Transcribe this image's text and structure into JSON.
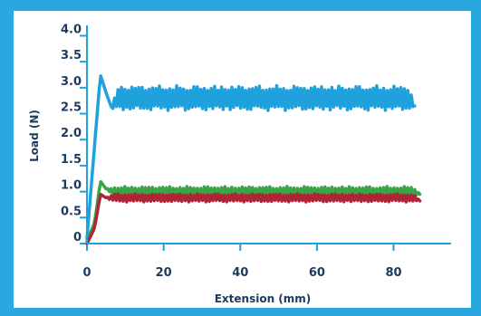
{
  "chart_data": {
    "type": "line",
    "xlabel": "Extension (mm)",
    "ylabel": "Load (N)",
    "xlim": [
      0,
      95
    ],
    "ylim": [
      0,
      4.2
    ],
    "x_ticks": [
      0,
      20,
      40,
      60,
      80
    ],
    "y_ticks": [
      0,
      0.5,
      1.0,
      1.5,
      2.0,
      2.5,
      3.0,
      3.5,
      4.0
    ],
    "y_tick_labels": [
      "0",
      "0.5",
      "1.0",
      "1.5",
      "2.0",
      "2.5",
      "3.0",
      "3.5",
      "4.0"
    ],
    "grid": false,
    "legend": "none",
    "series": [
      {
        "color": "#1ea1dc",
        "x": [
          0,
          3.5,
          5,
          6.5,
          8,
          10,
          15,
          20,
          25,
          30,
          35,
          40,
          45,
          50,
          55,
          60,
          65,
          70,
          75,
          80,
          84,
          85.5
        ],
        "y": [
          0.1,
          3.25,
          2.9,
          2.6,
          2.8,
          2.8,
          2.8,
          2.8,
          2.8,
          2.8,
          2.8,
          2.8,
          2.8,
          2.8,
          2.8,
          2.8,
          2.8,
          2.8,
          2.8,
          2.8,
          2.8,
          2.65
        ],
        "oscillation": [
          0,
          0,
          0,
          0,
          0.24,
          0.24,
          0.24,
          0.24,
          0.24,
          0.24,
          0.24,
          0.24,
          0.24,
          0.24,
          0.24,
          0.24,
          0.24,
          0.24,
          0.24,
          0.24,
          0.24,
          0
        ]
      },
      {
        "color": "#3aa547",
        "x": [
          0,
          2,
          3.5,
          5,
          7,
          10,
          20,
          30,
          40,
          50,
          60,
          70,
          80,
          85,
          87
        ],
        "y": [
          0.05,
          0.4,
          1.2,
          1.05,
          1.0,
          1.0,
          1.0,
          1.0,
          1.0,
          1.0,
          1.0,
          1.0,
          1.0,
          1.0,
          0.95
        ],
        "oscillation": [
          0,
          0,
          0,
          0,
          0.1,
          0.1,
          0.1,
          0.1,
          0.1,
          0.1,
          0.1,
          0.1,
          0.1,
          0.1,
          0
        ]
      },
      {
        "color": "#b02438",
        "x": [
          0,
          2,
          3.5,
          5,
          7,
          10,
          20,
          30,
          40,
          50,
          60,
          70,
          80,
          85,
          87
        ],
        "y": [
          0.0,
          0.3,
          0.95,
          0.88,
          0.88,
          0.88,
          0.88,
          0.88,
          0.88,
          0.88,
          0.88,
          0.88,
          0.88,
          0.88,
          0.82
        ],
        "oscillation": [
          0,
          0,
          0,
          0,
          0.08,
          0.08,
          0.08,
          0.08,
          0.08,
          0.08,
          0.08,
          0.08,
          0.08,
          0.08,
          0
        ]
      }
    ]
  },
  "colors": {
    "background": "#ffffff",
    "border": "#29a8e0",
    "axis": "#1ea1dc",
    "text": "#1b3a5e"
  }
}
